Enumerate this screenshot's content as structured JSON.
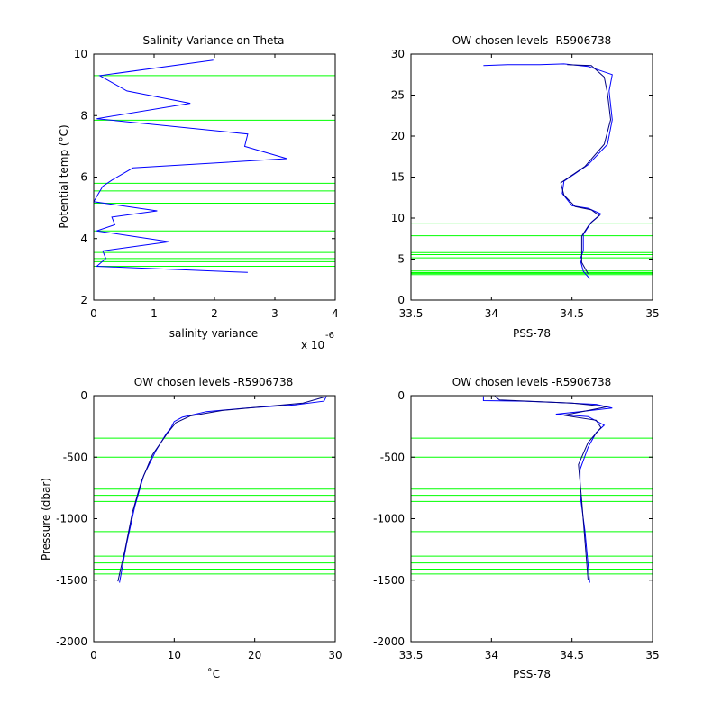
{
  "chart_data": [
    {
      "type": "line",
      "title": "Salinity Variance on Theta",
      "xlabel": "salinity variance",
      "ylabel": "Potential temp (°C)",
      "xlim": [
        0,
        4
      ],
      "ylim": [
        2,
        10
      ],
      "x_ticks": [
        "0",
        "1",
        "2",
        "3",
        "4"
      ],
      "y_ticks": [
        "2",
        "4",
        "6",
        "8",
        "10"
      ],
      "x_exponent_label": "x 10",
      "x_exponent": "-6",
      "grid": false,
      "series": [
        {
          "color": "#0000ff",
          "points": [
            [
              1.98,
              9.8
            ],
            [
              0.1,
              9.3
            ],
            [
              0.55,
              8.8
            ],
            [
              1.6,
              8.4
            ],
            [
              0.05,
              7.9
            ],
            [
              2.55,
              7.4
            ],
            [
              2.5,
              7.0
            ],
            [
              3.2,
              6.6
            ],
            [
              0.65,
              6.3
            ],
            [
              0.3,
              5.9
            ],
            [
              0.15,
              5.7
            ],
            [
              0.0,
              5.2
            ],
            [
              1.05,
              4.9
            ],
            [
              0.3,
              4.7
            ],
            [
              0.35,
              4.45
            ],
            [
              0.05,
              4.25
            ],
            [
              1.25,
              3.9
            ],
            [
              0.15,
              3.6
            ],
            [
              0.2,
              3.35
            ],
            [
              0.05,
              3.1
            ],
            [
              2.55,
              2.9
            ]
          ]
        }
      ],
      "hlines": {
        "color": "#00ff00",
        "values": [
          9.3,
          7.85,
          5.8,
          5.55,
          5.15,
          4.25,
          3.55,
          3.35,
          3.25,
          3.1
        ]
      }
    },
    {
      "type": "line",
      "title": "OW chosen levels -R5906738",
      "xlabel": "PSS-78",
      "ylabel": "",
      "xlim": [
        33.5,
        35
      ],
      "ylim": [
        0,
        30
      ],
      "x_ticks": [
        "33.5",
        "34",
        "34.5",
        "35"
      ],
      "y_ticks": [
        "0",
        "5",
        "10",
        "15",
        "20",
        "25",
        "30"
      ],
      "grid": false,
      "series": [
        {
          "color": "#0000ff",
          "points": [
            [
              33.95,
              28.6
            ],
            [
              34.1,
              28.7
            ],
            [
              34.3,
              28.7
            ],
            [
              34.45,
              28.8
            ],
            [
              34.6,
              28.5
            ],
            [
              34.75,
              27.5
            ],
            [
              34.73,
              25.5
            ],
            [
              34.75,
              22
            ],
            [
              34.72,
              19
            ],
            [
              34.6,
              16.5
            ],
            [
              34.45,
              14.5
            ],
            [
              34.44,
              13
            ],
            [
              34.5,
              11.5
            ],
            [
              34.6,
              11.2
            ],
            [
              34.68,
              10.5
            ],
            [
              34.62,
              9.5
            ],
            [
              34.57,
              8
            ],
            [
              34.57,
              6
            ],
            [
              34.55,
              5
            ],
            [
              34.57,
              3.5
            ],
            [
              34.61,
              2.6
            ]
          ]
        },
        {
          "color": "#000080",
          "points": [
            [
              34.47,
              28.7
            ],
            [
              34.62,
              28.6
            ],
            [
              34.7,
              27.2
            ],
            [
              34.72,
              25.2
            ],
            [
              34.74,
              22
            ],
            [
              34.7,
              19
            ],
            [
              34.58,
              16.3
            ],
            [
              34.43,
              14.3
            ],
            [
              34.45,
              12.8
            ],
            [
              34.52,
              11.4
            ],
            [
              34.62,
              11
            ],
            [
              34.67,
              10.3
            ],
            [
              34.61,
              9.3
            ],
            [
              34.56,
              7.8
            ],
            [
              34.56,
              6
            ],
            [
              34.56,
              4.6
            ],
            [
              34.6,
              3.2
            ]
          ]
        }
      ],
      "hlines": {
        "color": "#00ff00",
        "values": [
          9.3,
          7.85,
          5.8,
          5.55,
          5.15,
          3.55,
          3.35,
          3.25,
          3.1
        ]
      }
    },
    {
      "type": "line",
      "title": "OW chosen levels -R5906738",
      "xlabel": "˚C",
      "ylabel": "Pressure (dbar)",
      "xlim": [
        0,
        30
      ],
      "ylim": [
        -2000,
        0
      ],
      "x_ticks": [
        "0",
        "10",
        "20",
        "30"
      ],
      "y_ticks": [
        "0",
        "-500",
        "-1000",
        "-1500",
        "-2000"
      ],
      "grid": false,
      "series": [
        {
          "color": "#0000ff",
          "points": [
            [
              28.9,
              -5
            ],
            [
              28.6,
              -45
            ],
            [
              25,
              -75
            ],
            [
              19,
              -100
            ],
            [
              14,
              -130
            ],
            [
              11,
              -175
            ],
            [
              10,
              -210
            ],
            [
              9.6,
              -260
            ],
            [
              9,
              -310
            ],
            [
              7.7,
              -450
            ],
            [
              6.2,
              -650
            ],
            [
              5.1,
              -900
            ],
            [
              4.1,
              -1200
            ],
            [
              3.2,
              -1520
            ]
          ]
        },
        {
          "color": "#000080",
          "points": [
            [
              28.7,
              -10
            ],
            [
              26,
              -60
            ],
            [
              21,
              -90
            ],
            [
              16,
              -120
            ],
            [
              12,
              -165
            ],
            [
              10.2,
              -220
            ],
            [
              9.2,
              -300
            ],
            [
              7.3,
              -480
            ],
            [
              5.9,
              -700
            ],
            [
              4.8,
              -950
            ],
            [
              3.9,
              -1250
            ],
            [
              3.0,
              -1510
            ]
          ]
        }
      ],
      "hlines": {
        "color": "#00ff00",
        "values": [
          -345,
          -500,
          -760,
          -810,
          -860,
          -1105,
          -1305,
          -1360,
          -1410,
          -1450
        ]
      }
    },
    {
      "type": "line",
      "title": "OW chosen levels -R5906738",
      "xlabel": "PSS-78",
      "ylabel": "",
      "xlim": [
        33.5,
        35
      ],
      "ylim": [
        -2000,
        0
      ],
      "x_ticks": [
        "33.5",
        "34",
        "34.5",
        "35"
      ],
      "y_ticks": [
        "0",
        "-500",
        "-1000",
        "-1500",
        "-2000"
      ],
      "grid": false,
      "series": [
        {
          "color": "#0000ff",
          "points": [
            [
              33.95,
              -5
            ],
            [
              33.95,
              -40
            ],
            [
              34.2,
              -45
            ],
            [
              34.4,
              -55
            ],
            [
              34.65,
              -70
            ],
            [
              34.75,
              -100
            ],
            [
              34.55,
              -130
            ],
            [
              34.4,
              -150
            ],
            [
              34.6,
              -170
            ],
            [
              34.7,
              -240
            ],
            [
              34.65,
              -300
            ],
            [
              34.6,
              -420
            ],
            [
              34.55,
              -600
            ],
            [
              34.55,
              -800
            ],
            [
              34.58,
              -1100
            ],
            [
              34.61,
              -1520
            ]
          ]
        },
        {
          "color": "#000080",
          "points": [
            [
              34.02,
              -5
            ],
            [
              34.05,
              -35
            ],
            [
              34.5,
              -60
            ],
            [
              34.72,
              -90
            ],
            [
              34.58,
              -125
            ],
            [
              34.45,
              -160
            ],
            [
              34.65,
              -200
            ],
            [
              34.68,
              -260
            ],
            [
              34.6,
              -380
            ],
            [
              34.54,
              -560
            ],
            [
              34.56,
              -850
            ],
            [
              34.6,
              -1500
            ]
          ]
        }
      ],
      "hlines": {
        "color": "#00ff00",
        "values": [
          -345,
          -500,
          -760,
          -810,
          -860,
          -1105,
          -1305,
          -1360,
          -1410,
          -1450
        ]
      }
    }
  ]
}
